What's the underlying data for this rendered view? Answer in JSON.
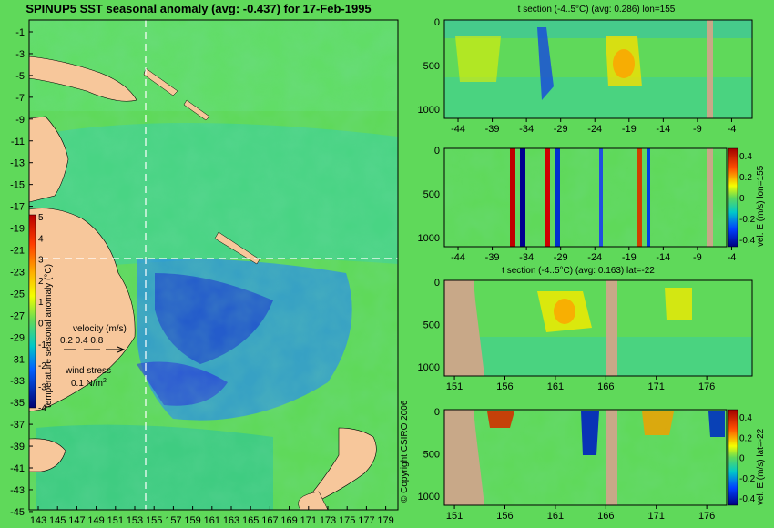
{
  "map": {
    "title": "SPINUP5 SST seasonal anomaly (avg: -0.437) for 17-Feb-1995",
    "lat_ticks": [
      "-1",
      "-3",
      "-5",
      "-7",
      "-9",
      "-11",
      "-13",
      "-15",
      "-17",
      "-19",
      "-21",
      "-23",
      "-25",
      "-27",
      "-29",
      "-31",
      "-33",
      "-35",
      "-37",
      "-39",
      "-41",
      "-43",
      "-45"
    ],
    "lon_ticks": [
      "143",
      "145",
      "147",
      "149",
      "151",
      "153",
      "155",
      "157",
      "159",
      "161",
      "163",
      "165",
      "167",
      "169",
      "171",
      "173",
      "175",
      "177",
      "179"
    ],
    "colorbar": {
      "ticks": [
        "5",
        "4",
        "3",
        "2",
        "1",
        "0",
        "-1",
        "-2",
        "-3",
        "-4"
      ],
      "label": "temperature seasonal anomaly (°C)"
    },
    "velocity_legend": {
      "title": "velocity (m/s)",
      "values": "0.2 0.4 0.8"
    },
    "wind_legend": {
      "title": "wind stress",
      "value": "0.1 N/m",
      "exponent": "2"
    },
    "copyright": "© Copyright CSIRO 2006",
    "colors": {
      "ocean": "#5fd95a",
      "land": "#f7c79b",
      "section_line": "#ffffff"
    }
  },
  "panels": [
    {
      "title": "t section (-4..5°C) (avg: 0.286) lon=155",
      "y_ticks": [
        "0",
        "500",
        "1000"
      ],
      "x_ticks": [
        "-44",
        "-39",
        "-34",
        "-29",
        "-24",
        "-19",
        "-14",
        "-9",
        "-4"
      ],
      "colorbar": null
    },
    {
      "title": "",
      "y_ticks": [
        "0",
        "500",
        "1000"
      ],
      "x_ticks": [
        "-44",
        "-39",
        "-34",
        "-29",
        "-24",
        "-19",
        "-14",
        "-9",
        "-4"
      ],
      "colorbar": {
        "ticks": [
          "0.4",
          "0.2",
          "0",
          "-0.2",
          "-0.4"
        ],
        "label": "vel. E (m/s) lon=155"
      }
    },
    {
      "title": "t section (-4..5°C) (avg: 0.163) lat=-22",
      "y_ticks": [
        "0",
        "500",
        "1000"
      ],
      "x_ticks": [
        "151",
        "156",
        "161",
        "166",
        "171",
        "176"
      ],
      "colorbar": null
    },
    {
      "title": "",
      "y_ticks": [
        "0",
        "500",
        "1000"
      ],
      "x_ticks": [
        "151",
        "156",
        "161",
        "166",
        "171",
        "176"
      ],
      "colorbar": {
        "ticks": [
          "0.4",
          "0.2",
          "0",
          "-0.2",
          "-0.4"
        ],
        "label": "vel. E (m/s) lat=-22"
      }
    }
  ]
}
